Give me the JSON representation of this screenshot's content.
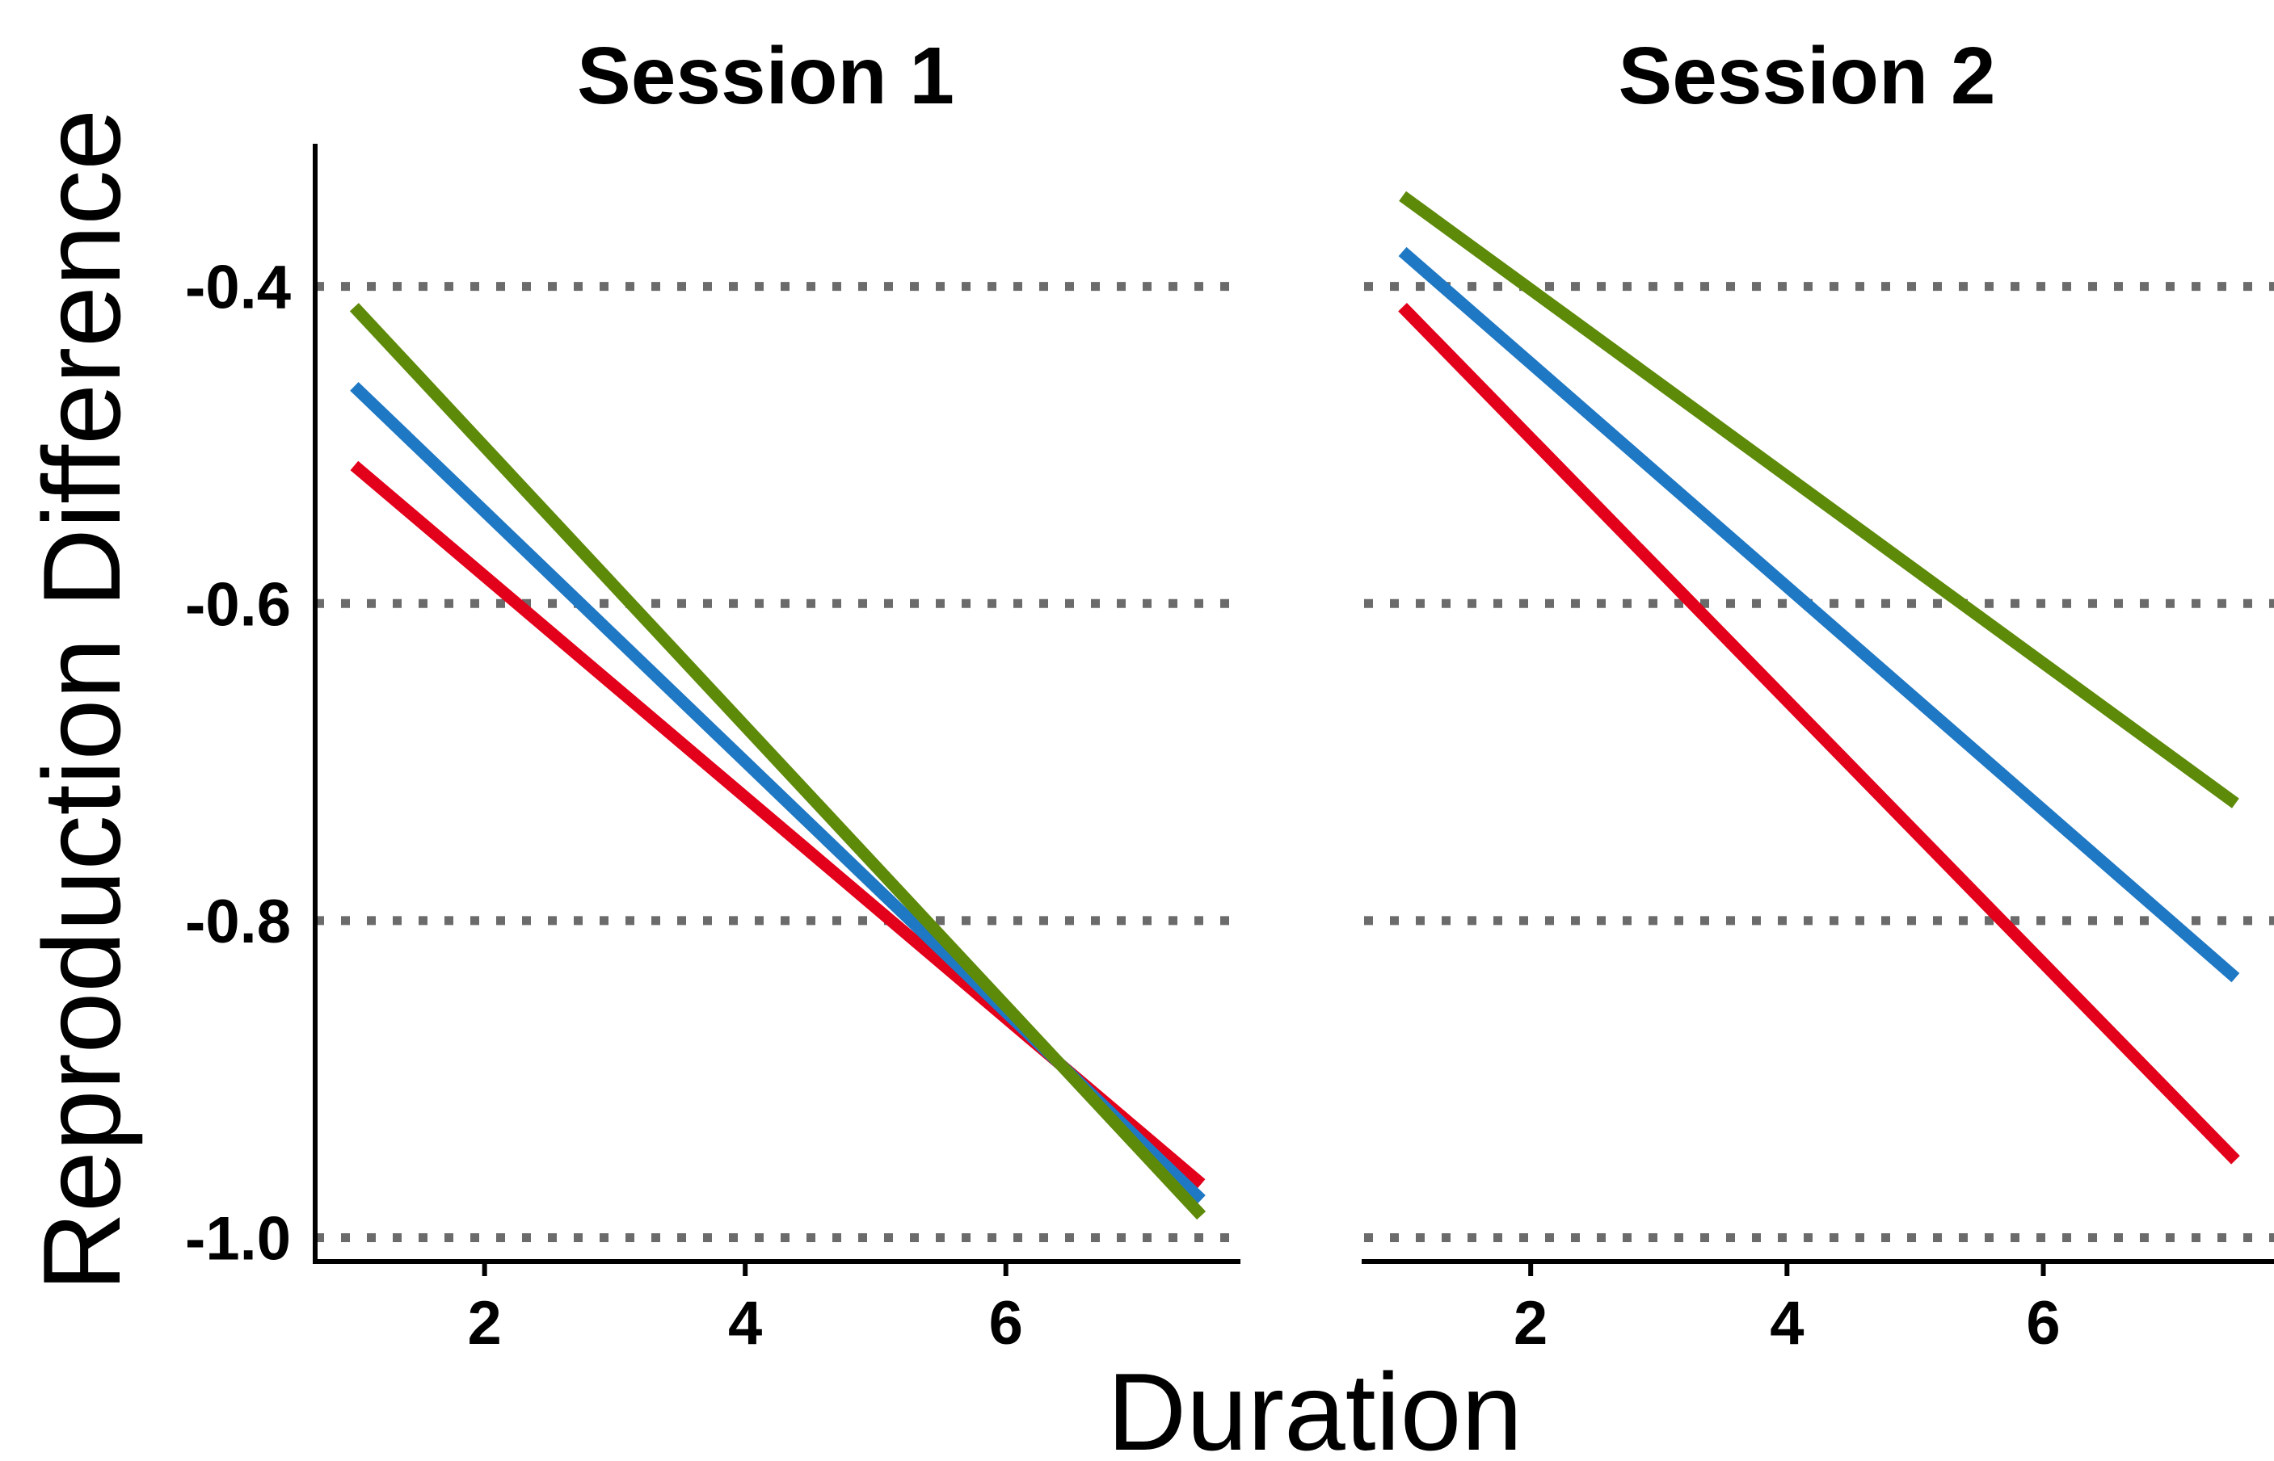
{
  "chart_data": {
    "type": "line",
    "xlabel": "Duration",
    "ylabel": "Reproduction Difference",
    "xlim": [
      0.7,
      7.8
    ],
    "ylim": [
      -1.015,
      -0.31
    ],
    "x_ticks": [
      2,
      4,
      6
    ],
    "y_ticks": [
      -1.0,
      -0.8,
      -0.6,
      -0.4
    ],
    "y_tick_labels": [
      "-1.0",
      "-0.8",
      "-0.6",
      "-0.4"
    ],
    "grid": "horizontal dotted at y ticks",
    "panels": [
      {
        "title": "Session 1",
        "series": [
          {
            "color": "#e3001b",
            "x": [
              1,
              7.5
            ],
            "y": [
              -0.513,
              -0.966
            ]
          },
          {
            "color": "#1f78c4",
            "x": [
              1,
              7.5
            ],
            "y": [
              -0.463,
              -0.976
            ]
          },
          {
            "color": "#5e8a0a",
            "x": [
              1,
              7.5
            ],
            "y": [
              -0.413,
              -0.986
            ]
          }
        ]
      },
      {
        "title": "Session 2",
        "series": [
          {
            "color": "#e3001b",
            "x": [
              1,
              7.5
            ],
            "y": [
              -0.413,
              -0.951
            ]
          },
          {
            "color": "#1f78c4",
            "x": [
              1,
              7.5
            ],
            "y": [
              -0.378,
              -0.836
            ]
          },
          {
            "color": "#5e8a0a",
            "x": [
              1,
              7.5
            ],
            "y": [
              -0.343,
              -0.726
            ]
          }
        ]
      }
    ]
  }
}
